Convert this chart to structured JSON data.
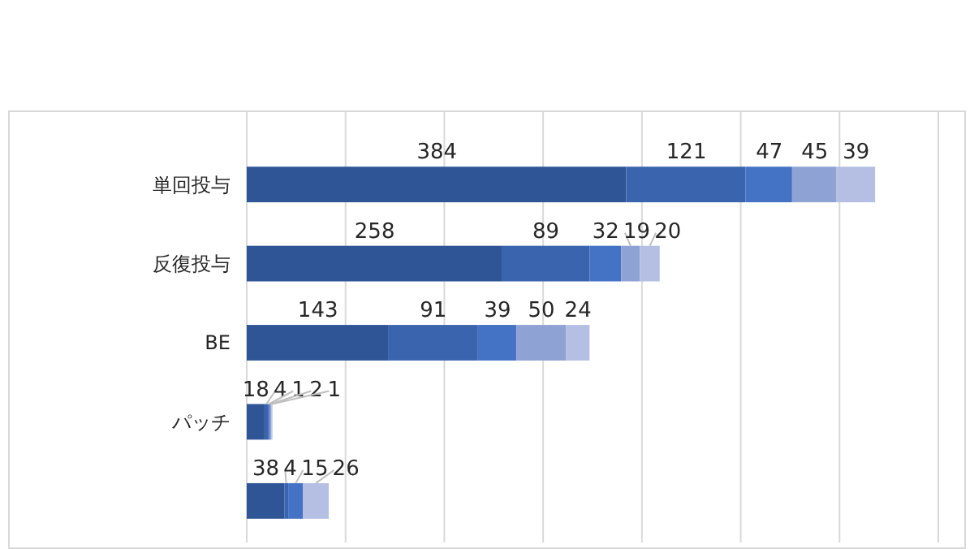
{
  "chart_data": {
    "type": "bar",
    "orientation": "horizontal",
    "stacked": true,
    "categories": [
      "単回投与",
      "反復投与",
      "BE",
      "パッチ",
      null
    ],
    "series": [
      {
        "color": "#2f5597",
        "values": [
          384,
          258,
          143,
          18,
          38
        ]
      },
      {
        "color": "#3a64ad",
        "values": [
          121,
          89,
          91,
          4,
          4
        ]
      },
      {
        "color": "#4472c4",
        "values": [
          47,
          32,
          39,
          1,
          15
        ]
      },
      {
        "color": "#8fa2d4",
        "values": [
          45,
          19,
          50,
          2,
          null
        ]
      },
      {
        "color": "#b4bfe3",
        "values": [
          39,
          20,
          24,
          1,
          26
        ]
      }
    ],
    "xlim": [
      0,
      700
    ],
    "xticks": [
      {
        "value": 0,
        "label": null
      },
      {
        "value": 100,
        "label": null
      },
      {
        "value": 200,
        "label": null
      },
      {
        "value": 300,
        "label": null
      },
      {
        "value": 400,
        "label": null
      },
      {
        "value": 500,
        "label": null
      },
      {
        "value": 600,
        "label": null
      },
      {
        "value": 700,
        "label": null
      }
    ],
    "tick_labels": "y",
    "grid": "x",
    "data_labels": true
  }
}
